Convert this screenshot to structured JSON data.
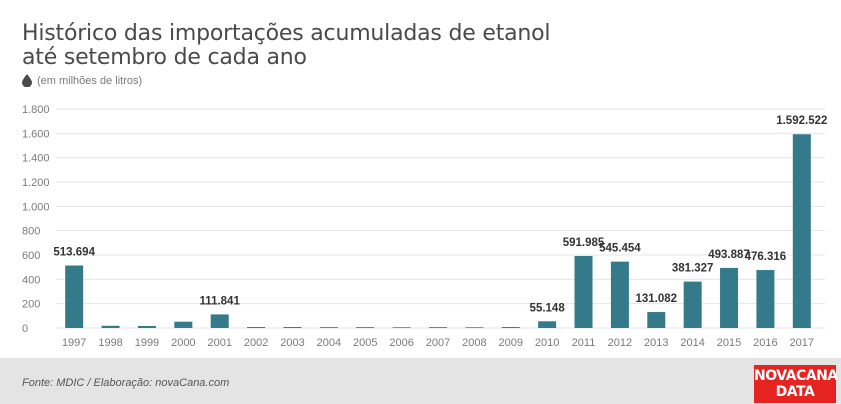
{
  "title_line1": "Histórico das importações acumuladas de etanol",
  "title_line2": "até setembro de cada ano",
  "unit_label": "(em milhões de litros)",
  "source": "Fonte: MDIC / Elaboração: novaCana.com",
  "logo": {
    "line1": "NOVACANA",
    "line2": "DATA"
  },
  "colors": {
    "bar": "#357a8a",
    "grid": "#e5e5e5",
    "brand": "#e52421"
  },
  "chart_data": {
    "type": "bar",
    "categories": [
      "1997",
      "1998",
      "1999",
      "2000",
      "2001",
      "2002",
      "2003",
      "2004",
      "2005",
      "2006",
      "2007",
      "2008",
      "2009",
      "2010",
      "2011",
      "2012",
      "2013",
      "2014",
      "2015",
      "2016",
      "2017"
    ],
    "values": [
      513.694,
      18,
      17,
      52,
      111.841,
      8,
      8,
      7,
      7,
      6,
      7,
      6,
      8,
      55.148,
      591.985,
      545.454,
      131.082,
      381.327,
      493.887,
      476.316,
      1592.522
    ],
    "data_labels": [
      "513.694",
      "",
      "",
      "",
      "111.841",
      "",
      "",
      "",
      "",
      "",
      "",
      "",
      "",
      "55.148",
      "591.985",
      "545.454",
      "131.082",
      "381.327",
      "493.887",
      "476.316",
      "1.592.522"
    ],
    "yticks": [
      0,
      200,
      400,
      600,
      800,
      1000,
      1200,
      1400,
      1600,
      1800
    ],
    "ytick_labels": [
      "0",
      "200",
      "400",
      "600",
      "800",
      "1.000",
      "1.200",
      "1.400",
      "1.600",
      "1.800"
    ],
    "ylim": [
      0,
      1800
    ],
    "grid": true
  }
}
